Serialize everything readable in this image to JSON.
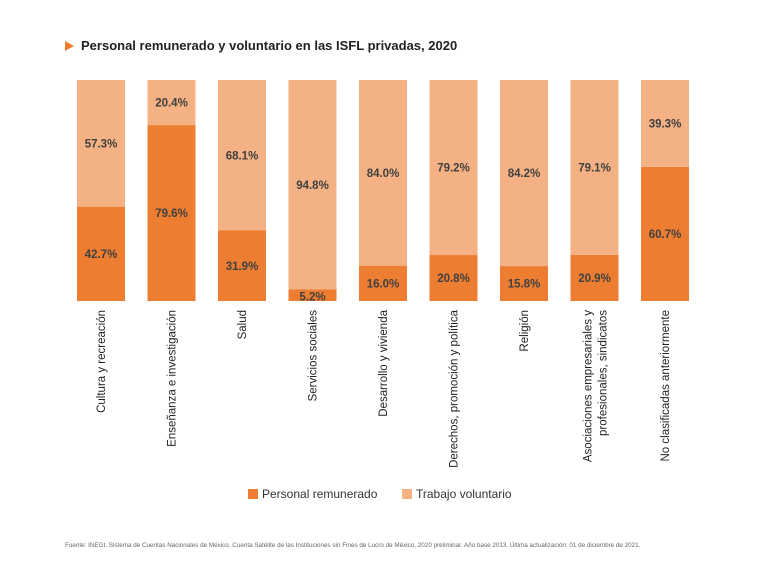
{
  "title": "Personal remunerado y voluntario en las ISFL privadas, 2020",
  "colors": {
    "paid": "#ED7D31",
    "volunteer": "#F4B183",
    "title_marker": "#ED7D31"
  },
  "chart_data": {
    "type": "bar",
    "stacked": true,
    "percent_stacked": true,
    "categories": [
      "Cultura y recreación",
      "Enseñanza e investigación",
      "Salud",
      "Servicios sociales",
      "Desarrollo y vivienda",
      "Derechos, promoción y política",
      "Religión",
      "Asociaciones empresariales y profesionales, sindicatos",
      "No clasificadas anteriormente"
    ],
    "series": [
      {
        "name": "Personal remunerado",
        "values": [
          42.7,
          79.6,
          31.9,
          5.2,
          16.0,
          20.8,
          15.8,
          20.9,
          60.7
        ],
        "labels": [
          "42.7%",
          "79.6%",
          "31.9%",
          "5.2%",
          "16.0%",
          "20.8%",
          "15.8%",
          "20.9%",
          "60.7%"
        ]
      },
      {
        "name": "Trabajo voluntario",
        "values": [
          57.3,
          20.4,
          68.1,
          94.8,
          84.0,
          79.2,
          84.2,
          79.1,
          39.3
        ],
        "labels": [
          "57.3%",
          "20.4%",
          "68.1%",
          "94.8%",
          "84.0%",
          "79.2%",
          "84.2%",
          "79.1%",
          "39.3%"
        ]
      }
    ],
    "ylim": [
      0,
      100
    ],
    "grid": false,
    "legend_position": "bottom"
  },
  "source_note": "Fuente: INEGI. Sistema de Cuentas Nacionales de México. Cuenta Satélite de las Instituciones sin Fines de Lucro de México, 2020  preliminar. Año base 2013.  Última actualización: 01 de diciembre de 2021."
}
